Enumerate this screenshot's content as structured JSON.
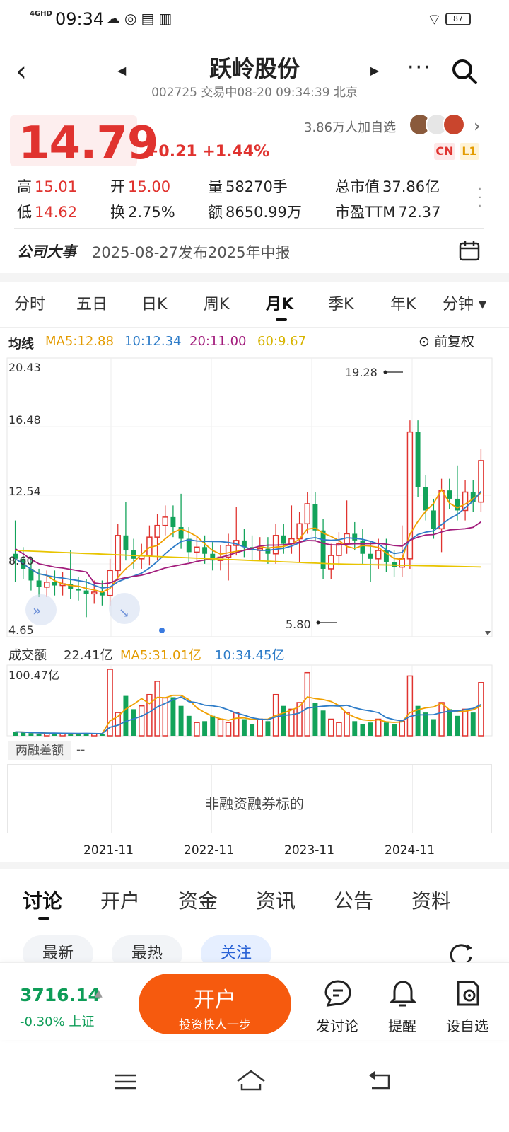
{
  "status": {
    "network": "4GHD",
    "time": "09:34",
    "battery": "87"
  },
  "header": {
    "title": "跃岭股份",
    "subtitle": "002725 交易中08-20 09:34:39 北京"
  },
  "quote": {
    "price": "14.79",
    "change": "+0.21 +1.44%",
    "followers": "3.86万人加自选",
    "badge_cn": "CN",
    "badge_l1": "L1",
    "stats": [
      {
        "label": "高",
        "value": "15.01"
      },
      {
        "label": "开",
        "value": "15.00"
      },
      {
        "label": "量",
        "value": "58270手"
      },
      {
        "label": "总市值",
        "value": "37.86亿"
      },
      {
        "label": "低",
        "value": "14.62"
      },
      {
        "label": "换",
        "value": "2.75%"
      },
      {
        "label": "额",
        "value": "8650.99万"
      },
      {
        "label": "市盈TTM",
        "value": "72.37"
      }
    ]
  },
  "events": {
    "label": "公司大事",
    "text": "2025-08-27发布2025年中报"
  },
  "kline_tabs": [
    "分时",
    "五日",
    "日K",
    "周K",
    "月K",
    "季K",
    "年K",
    "分钟 ▾"
  ],
  "ma": {
    "label": "均线",
    "ma5": "MA5:12.88",
    "ma10": "10:12.34",
    "ma20": "20:11.00",
    "ma60": "60:9.67",
    "restore": "前复权"
  },
  "chart_data": {
    "type": "candlestick",
    "y_ticks": [
      "20.43",
      "16.48",
      "12.54",
      "8.60",
      "4.65"
    ],
    "high_marker": "19.28",
    "low_marker": "5.80",
    "x_ticks": [
      "2021-11",
      "2022-11",
      "2023-11",
      "2024-11"
    ],
    "colors": {
      "up": "#e0332f",
      "down": "#12a35a",
      "ma5": "#f0a000",
      "ma10": "#2e7cc8",
      "ma20": "#a21c7c",
      "ma60": "#e8c400"
    }
  },
  "volume": {
    "label": "成交额",
    "value": "22.41亿",
    "ma5": "MA5:31.01亿",
    "ma10": "10:34.45亿",
    "max": "100.47亿"
  },
  "margin": {
    "label": "两融差额",
    "value": "--",
    "note": "非融资融券标的"
  },
  "bottom_tabs": [
    "讨论",
    "开户",
    "资金",
    "资讯",
    "公告",
    "资料"
  ],
  "pills": [
    "最新",
    "最热",
    "关注"
  ],
  "bottom_bar": {
    "index_value": "3716.14",
    "index_change": "-0.30% 上证",
    "open_title": "开户",
    "open_sub": "投资快人一步",
    "actions": [
      "发讨论",
      "提醒",
      "设自选"
    ]
  }
}
